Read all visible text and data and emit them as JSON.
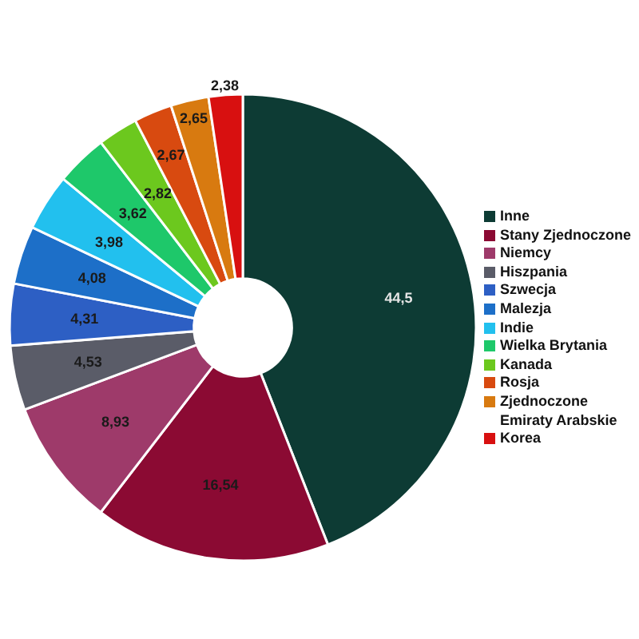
{
  "chart_data": {
    "type": "donut",
    "categories": [
      "Inne",
      "Stany Zjednoczone",
      "Niemcy",
      "Hiszpania",
      "Szwecja",
      "Malezja",
      "Indie",
      "Wielka Brytania",
      "Kanada",
      "Rosja",
      "Zjednoczone Emiraty Arabskie",
      "Korea"
    ],
    "values": [
      44.5,
      16.54,
      8.93,
      4.53,
      4.31,
      4.08,
      3.98,
      3.62,
      2.82,
      2.67,
      2.65,
      2.38
    ],
    "colors": [
      "#0d3b34",
      "#8b0a33",
      "#9e3a6a",
      "#5a5c68",
      "#2d5fc4",
      "#1d6fc8",
      "#22c0ee",
      "#1ec86a",
      "#6cc81e",
      "#d84a10",
      "#d87a10",
      "#d81010"
    ],
    "value_labels": [
      "44,5",
      "16,54",
      "8,93",
      "4,53",
      "4,31",
      "4,08",
      "3,98",
      "3,62",
      "2,82",
      "2,67",
      "2,65",
      "2,38"
    ],
    "legend": "right"
  }
}
